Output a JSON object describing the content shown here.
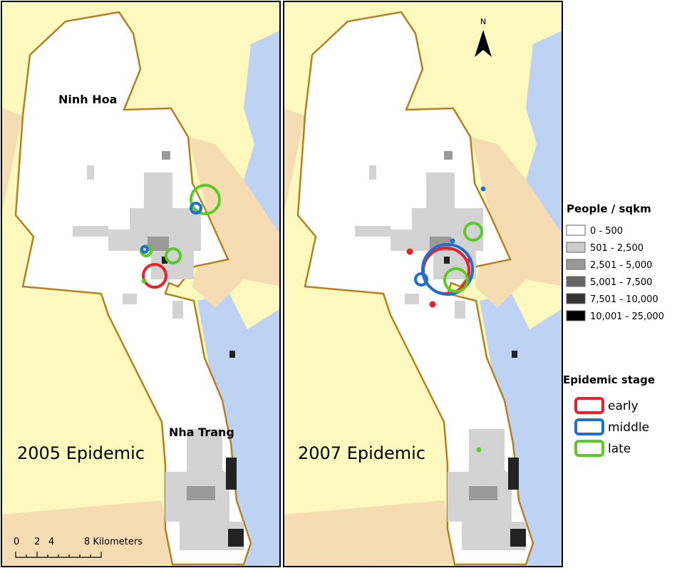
{
  "panels": [
    {
      "title": "2005 Epidemic",
      "places": [
        "Ninh Hoa",
        "Nha Trang"
      ]
    },
    {
      "title": "2007 Epidemic",
      "north": "N"
    }
  ],
  "scale_bar": {
    "ticks": [
      "0",
      "2",
      "4",
      "8 Kilometers"
    ]
  },
  "legend": {
    "density_title": "People / sqkm",
    "density_classes": [
      "0 - 500",
      "501 - 2,500",
      "2,501 - 5,000",
      "5,001 - 7,500",
      "7,501 - 10,000",
      "10,001 - 25,000"
    ],
    "stage_title": "Epidemic stage",
    "stages": [
      "early",
      "middle",
      "late"
    ]
  }
}
